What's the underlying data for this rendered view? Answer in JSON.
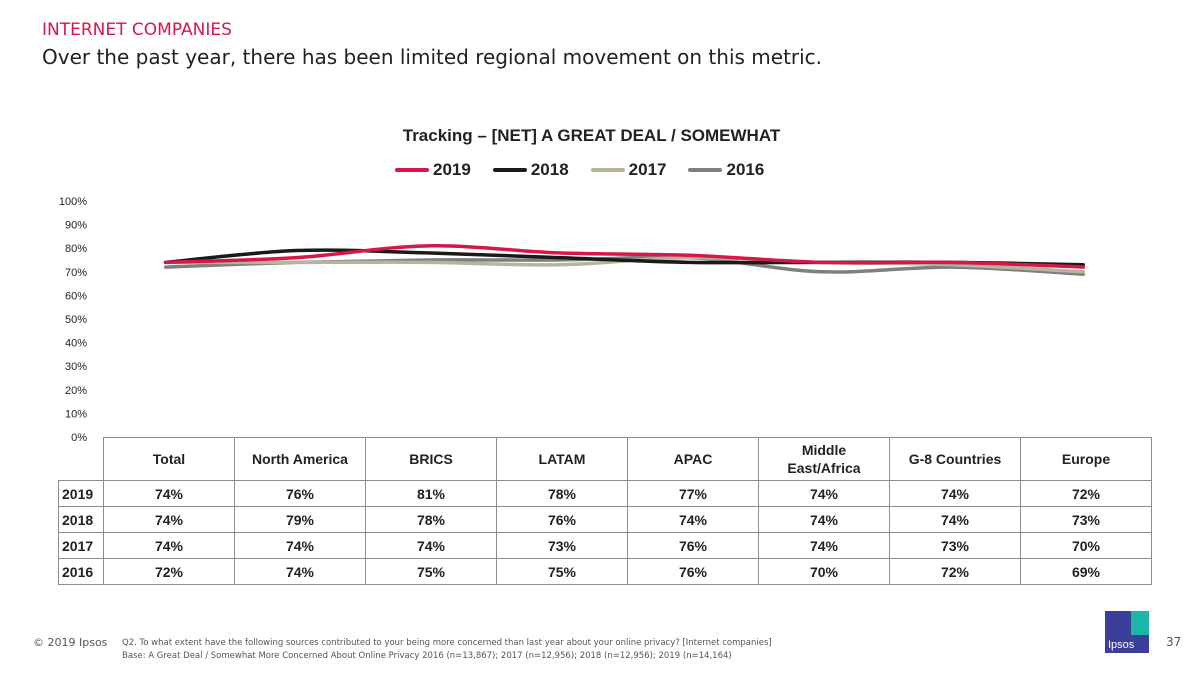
{
  "header": {
    "section": "INTERNET COMPANIES",
    "headline": "Over the past year, there has been limited regional movement on this metric."
  },
  "chart_data": {
    "type": "line",
    "title": "Tracking – [NET] A GREAT DEAL / SOMEWHAT",
    "categories": [
      "Total",
      "North America",
      "BRICS",
      "LATAM",
      "APAC",
      "Middle East/Africa",
      "G-8 Countries",
      "Europe"
    ],
    "series": [
      {
        "name": "2019",
        "color": "#d6174a",
        "values": [
          74,
          76,
          81,
          78,
          77,
          74,
          74,
          72
        ],
        "labels": [
          "74%",
          "76%",
          "81%",
          "78%",
          "77%",
          "74%",
          "74%",
          "72%"
        ]
      },
      {
        "name": "2018",
        "color": "#1a1a1a",
        "values": [
          74,
          79,
          78,
          76,
          74,
          74,
          74,
          73
        ],
        "labels": [
          "74%",
          "79%",
          "78%",
          "76%",
          "74%",
          "74%",
          "74%",
          "73%"
        ]
      },
      {
        "name": "2017",
        "color": "#b8b39a",
        "values": [
          74,
          74,
          74,
          73,
          76,
          74,
          73,
          70
        ],
        "labels": [
          "74%",
          "74%",
          "74%",
          "73%",
          "76%",
          "74%",
          "73%",
          "70%"
        ]
      },
      {
        "name": "2016",
        "color": "#7f7f7f",
        "values": [
          72,
          74,
          75,
          75,
          76,
          70,
          72,
          69
        ],
        "labels": [
          "72%",
          "74%",
          "75%",
          "75%",
          "76%",
          "70%",
          "72%",
          "69%"
        ]
      }
    ],
    "ylim": [
      0,
      100
    ],
    "yticks": [
      "0%",
      "10%",
      "20%",
      "30%",
      "40%",
      "50%",
      "60%",
      "70%",
      "80%",
      "90%",
      "100%"
    ],
    "legend": "top",
    "grid": false
  },
  "footer": {
    "copyright": "© 2019 Ipsos",
    "question": "Q2. To what extent have the following sources contributed to your being more concerned than last year about your online privacy? [Internet companies]",
    "base": "Base: A Great Deal / Somewhat More Concerned About Online Privacy 2016 (n=13,867); 2017 (n=12,956); 2018 (n=12,956); 2019 (n=14,164)",
    "logo_text": "Ipsos",
    "page_number": "37"
  }
}
